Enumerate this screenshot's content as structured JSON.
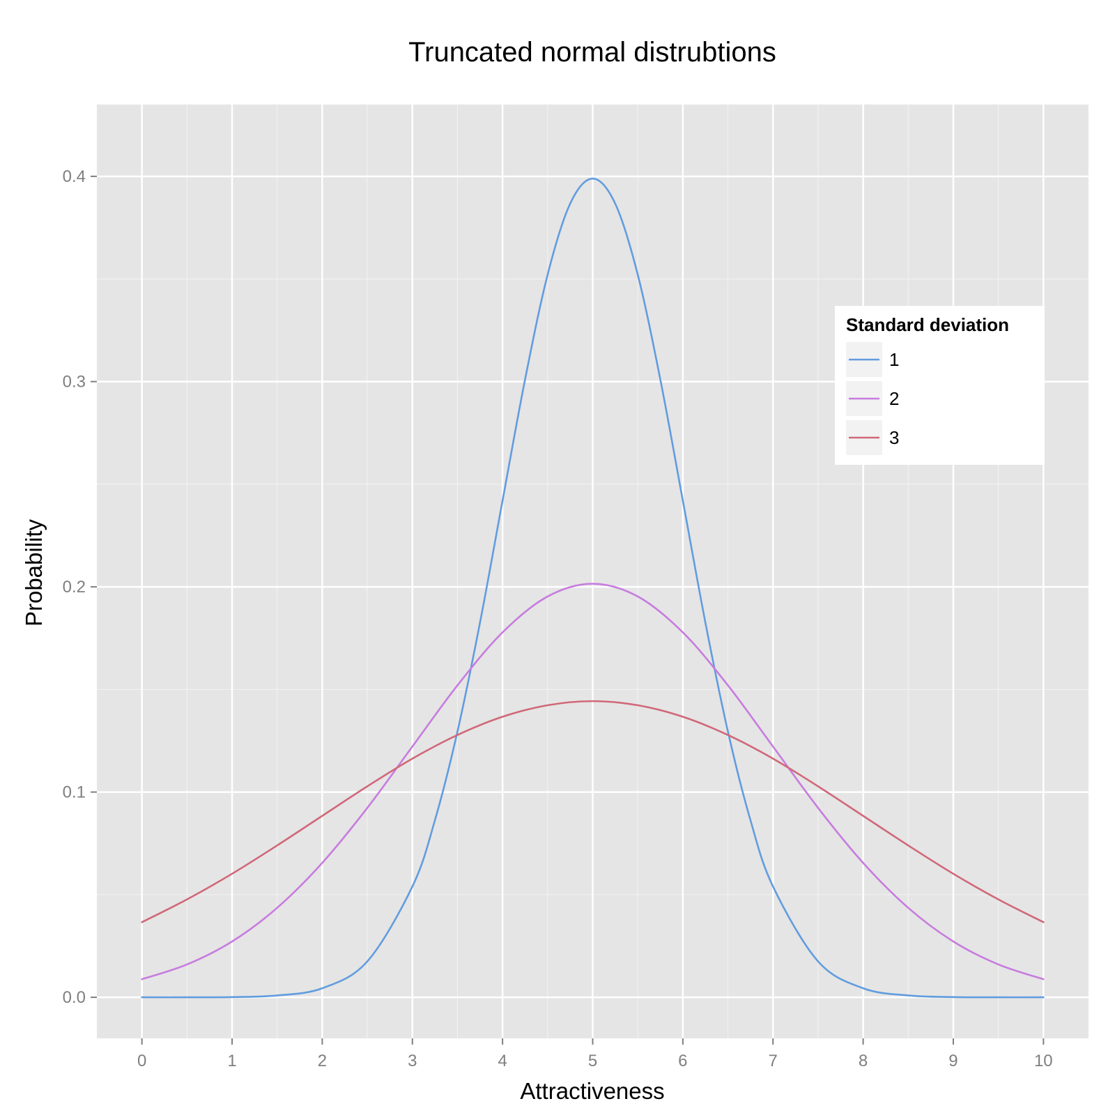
{
  "chart_data": {
    "type": "line",
    "title": "Truncated normal distrubtions",
    "xlabel": "Attractiveness",
    "ylabel": "Probability",
    "xlim": [
      -0.5,
      10.5
    ],
    "ylim": [
      -0.02,
      0.435
    ],
    "x_ticks": [
      0,
      1,
      2,
      3,
      4,
      5,
      6,
      7,
      8,
      9,
      10
    ],
    "x_tick_labels": [
      "0",
      "1",
      "2",
      "3",
      "4",
      "5",
      "6",
      "7",
      "8",
      "9",
      "10"
    ],
    "y_ticks": [
      0.0,
      0.1,
      0.2,
      0.3,
      0.4
    ],
    "y_tick_labels": [
      "0.0",
      "0.1",
      "0.2",
      "0.3",
      "0.4"
    ],
    "grid": true,
    "panel_background": "#e5e5e5",
    "grid_color": "#ffffff",
    "legend": {
      "title": "Standard deviation",
      "placement": "right"
    },
    "series": [
      {
        "name": "1",
        "color": "#619cdf",
        "x": [
          0,
          0.5,
          1,
          1.5,
          2,
          2.5,
          3,
          3.25,
          3.5,
          3.75,
          4,
          4.25,
          4.5,
          4.75,
          5,
          5.25,
          5.5,
          5.75,
          6,
          6.25,
          6.5,
          6.75,
          7,
          7.5,
          8,
          8.5,
          9,
          9.5,
          10
        ],
        "y": [
          0.0,
          0.0,
          0.0001,
          0.0009,
          0.0044,
          0.0175,
          0.054,
          0.0863,
          0.1295,
          0.1826,
          0.242,
          0.3011,
          0.3521,
          0.3867,
          0.3989,
          0.3867,
          0.3521,
          0.3011,
          0.242,
          0.1826,
          0.1295,
          0.0863,
          0.054,
          0.0175,
          0.0044,
          0.0009,
          0.0001,
          0.0,
          0.0
        ]
      },
      {
        "name": "2",
        "color": "#c77cde",
        "x": [
          0,
          0.5,
          1,
          1.5,
          2,
          2.5,
          3,
          3.5,
          4,
          4.5,
          5,
          5.5,
          6,
          6.5,
          7,
          7.5,
          8,
          8.5,
          9,
          9.5,
          10
        ],
        "y": [
          0.0088,
          0.016,
          0.0272,
          0.0436,
          0.0655,
          0.0923,
          0.1222,
          0.152,
          0.1778,
          0.1953,
          0.2015,
          0.1953,
          0.1778,
          0.152,
          0.1222,
          0.0923,
          0.0655,
          0.0436,
          0.0272,
          0.016,
          0.0088
        ]
      },
      {
        "name": "3",
        "color": "#d06879",
        "x": [
          0,
          0.5,
          1,
          1.5,
          2,
          2.5,
          3,
          3.5,
          4,
          4.5,
          5,
          5.5,
          6,
          6.5,
          7,
          7.5,
          8,
          8.5,
          9,
          9.5,
          10
        ],
        "y": [
          0.0366,
          0.0477,
          0.0602,
          0.074,
          0.0884,
          0.1028,
          0.1163,
          0.1278,
          0.1367,
          0.1423,
          0.1443,
          0.1423,
          0.1367,
          0.1278,
          0.1163,
          0.1028,
          0.0884,
          0.074,
          0.0602,
          0.0477,
          0.0366
        ]
      }
    ]
  }
}
